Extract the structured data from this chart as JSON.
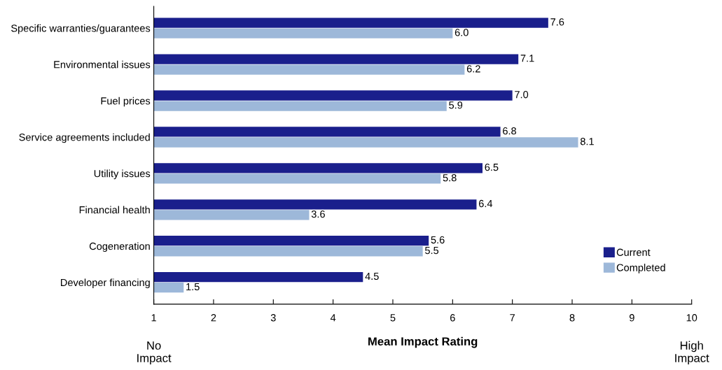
{
  "chart_data": {
    "type": "bar",
    "orientation": "horizontal",
    "categories": [
      "Specific warranties/guarantees",
      "Environmental issues",
      "Fuel prices",
      "Service agreements included",
      "Utility issues",
      "Financial health",
      "Cogeneration",
      "Developer financing"
    ],
    "series": [
      {
        "name": "Current",
        "color": "#1a1f8c",
        "values": [
          7.6,
          7.1,
          7.0,
          6.8,
          6.5,
          6.4,
          5.6,
          4.5
        ],
        "value_labels": [
          "7.6",
          "7.1",
          "7.0",
          "6.8",
          "6.5",
          "6.4",
          "5.6",
          "4.5"
        ]
      },
      {
        "name": "Completed",
        "color": "#9db8d9",
        "values": [
          6.0,
          6.2,
          5.9,
          8.1,
          5.8,
          3.6,
          5.5,
          1.5
        ],
        "value_labels": [
          "6.0",
          "6.2",
          "5.9",
          "8.1",
          "5.8",
          "3.6",
          "5.5",
          "1.5"
        ]
      }
    ],
    "xlabel": "Mean Impact Rating",
    "xlim": [
      1,
      10
    ],
    "xticks": [
      1,
      2,
      3,
      4,
      5,
      6,
      7,
      8,
      9,
      10
    ],
    "annotations": [
      "No\nImpact",
      "High\nImpact"
    ],
    "grid": false,
    "legend": "right"
  }
}
